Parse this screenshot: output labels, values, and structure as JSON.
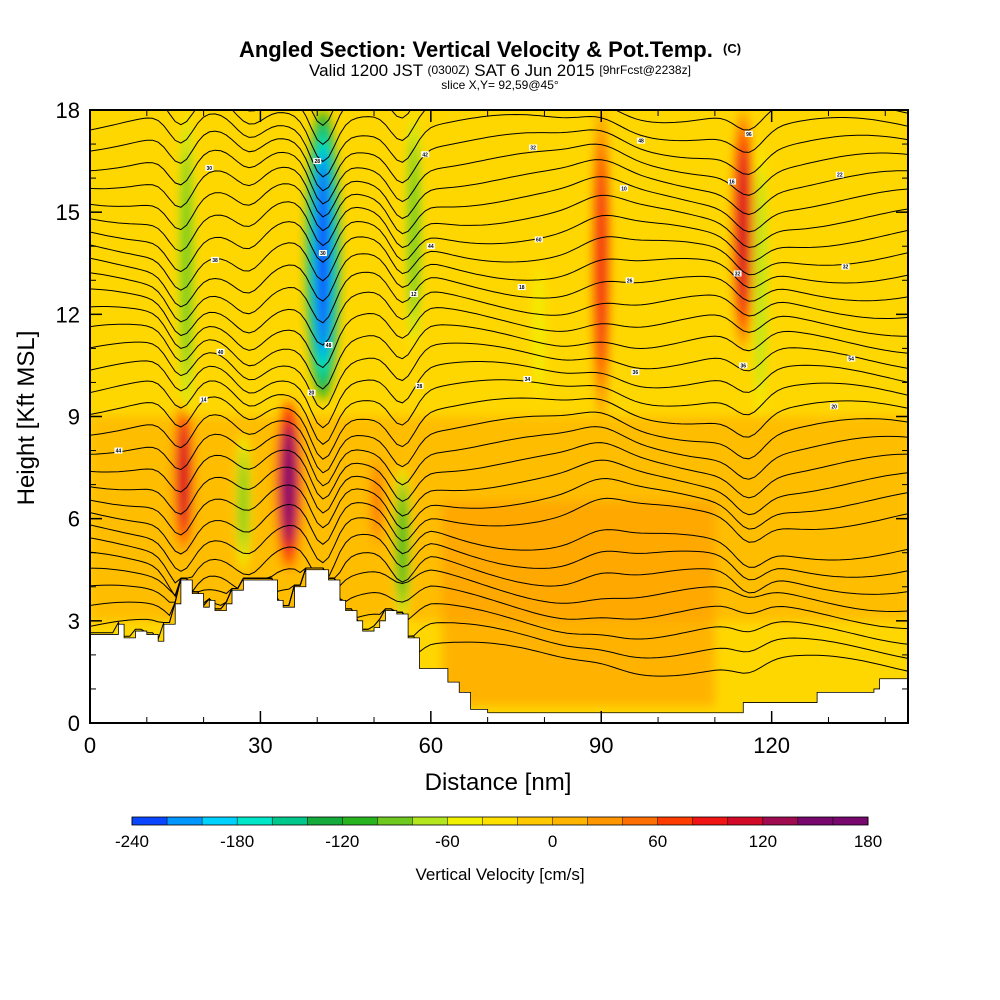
{
  "header": {
    "title_main": "Angled Section: Vertical Velocity & Pot.Temp.",
    "title_unit": "(C)",
    "valid_pre": "Valid 1200 JST",
    "valid_utc": "(0300Z)",
    "valid_date": "SAT 6 Jun 2015",
    "forecast": "[9hrFcst@2238z]",
    "slice": "slice X,Y= 92,59@45°"
  },
  "chart_data": {
    "type": "heatmap",
    "xlabel": "Distance [nm]",
    "ylabel": "Height [Kft MSL]",
    "xlim": [
      0,
      144
    ],
    "ylim": [
      0,
      18
    ],
    "xticks": [
      "0",
      "30",
      "60",
      "90",
      "120"
    ],
    "xtick_values": [
      0,
      30,
      60,
      90,
      120
    ],
    "yticks": [
      "0",
      "3",
      "6",
      "9",
      "12",
      "15",
      "18"
    ],
    "ytick_values": [
      0,
      3,
      6,
      9,
      12,
      15,
      18
    ],
    "colorbar": {
      "label": "Vertical Velocity [cm/s]",
      "range": [
        -240,
        180
      ],
      "step": 20,
      "tick_labels": [
        "-240",
        "-180",
        "-120",
        "-60",
        "0",
        "60",
        "120",
        "180"
      ],
      "tick_values": [
        -240,
        -180,
        -120,
        -60,
        0,
        60,
        120,
        180
      ],
      "colors": [
        "#0000f0",
        "#0a46ff",
        "#0096ff",
        "#00d2ff",
        "#00e6c8",
        "#00c88c",
        "#14aa3c",
        "#28b41e",
        "#6ec81e",
        "#b4e61e",
        "#f0f000",
        "#ffe100",
        "#ffc800",
        "#ffb400",
        "#ff9600",
        "#ff6e00",
        "#ff3c00",
        "#f01414",
        "#d20a28",
        "#a00a50",
        "#78086e"
      ]
    },
    "velocity_features": [
      {
        "kind": "updraft",
        "x": 16.5,
        "height_range": [
          5,
          9.5
        ],
        "peak_cm_s": 120
      },
      {
        "kind": "downdraft",
        "x": 17,
        "height_range": [
          9,
          18
        ],
        "peak_cm_s": -80
      },
      {
        "kind": "updraft",
        "x": 35,
        "height_range": [
          4.5,
          9.5
        ],
        "peak_cm_s": 170
      },
      {
        "kind": "downdraft",
        "x": 41,
        "height_range": [
          9.5,
          18
        ],
        "peak_cm_s": -220
      },
      {
        "kind": "downdraft",
        "x": 27,
        "height_range": [
          4.5,
          8.5
        ],
        "peak_cm_s": -70
      },
      {
        "kind": "updraft",
        "x": 50.5,
        "height_range": [
          5,
          8
        ],
        "peak_cm_s": 60
      },
      {
        "kind": "downdraft",
        "x": 55,
        "height_range": [
          3,
          7.5
        ],
        "peak_cm_s": -90
      },
      {
        "kind": "downdraft",
        "x": 57,
        "height_range": [
          11,
          18
        ],
        "peak_cm_s": -80
      },
      {
        "kind": "updraft",
        "x": 90,
        "height_range": [
          9,
          18
        ],
        "peak_cm_s": 100
      },
      {
        "kind": "updraft",
        "x": 115,
        "height_range": [
          11,
          18
        ],
        "peak_cm_s": 130
      },
      {
        "kind": "downdraft",
        "x": 118,
        "height_range": [
          9,
          17
        ],
        "peak_cm_s": -60
      },
      {
        "kind": "downdraft",
        "x": 79,
        "height_range": [
          9.5,
          13.5
        ],
        "peak_cm_s": -40
      }
    ],
    "terrain_kft": {
      "x": [
        0,
        5,
        6,
        8,
        10,
        12,
        13,
        15,
        16,
        18,
        20,
        21,
        22,
        24,
        25,
        27,
        30,
        33,
        34,
        36,
        38,
        40,
        42,
        44,
        45,
        47,
        48,
        50,
        51,
        52,
        54,
        56,
        58,
        60,
        63,
        65,
        67,
        70,
        80,
        100,
        114,
        115,
        120,
        128,
        130,
        138,
        139,
        144
      ],
      "height": [
        2.6,
        2.9,
        2.5,
        2.7,
        2.6,
        2.4,
        2.9,
        3.5,
        4.2,
        3.8,
        3.4,
        3.6,
        3.3,
        3.5,
        3.9,
        4.2,
        4.2,
        3.6,
        3.4,
        4.0,
        4.5,
        4.5,
        4.2,
        3.6,
        3.3,
        3.0,
        2.7,
        2.8,
        3.0,
        3.3,
        3.2,
        2.5,
        1.6,
        1.6,
        1.2,
        0.9,
        0.4,
        0.3,
        0.3,
        0.3,
        0.3,
        0.6,
        0.6,
        0.9,
        0.9,
        1.0,
        1.3,
        1.3
      ]
    },
    "isentropes": {
      "count": 34,
      "labels": [
        "44",
        "48",
        "60",
        "96",
        "40",
        "44",
        "48",
        "54",
        "30",
        "32",
        "36",
        "38",
        "42",
        "36",
        "32",
        "28",
        "34",
        "32",
        "30",
        "28",
        "26",
        "22",
        "20",
        "18",
        "16",
        "14",
        "12",
        "10",
        "20"
      ]
    }
  }
}
